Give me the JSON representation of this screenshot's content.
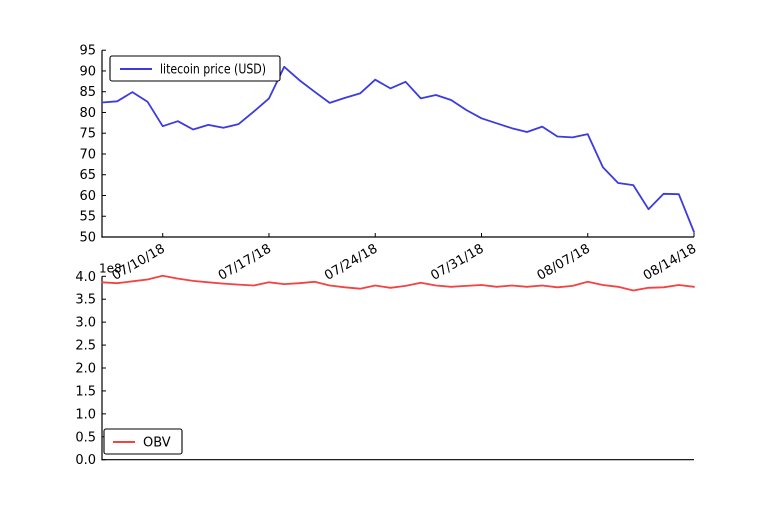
{
  "figure": {
    "background": "#ffffff",
    "axis_color": "#000000",
    "tick_label_color": "#000000"
  },
  "chart_data": [
    {
      "id": "litecoin-price",
      "type": "line",
      "title": "",
      "xlabel": "",
      "ylabel": "",
      "grid": false,
      "x": [
        "07/06/18",
        "07/07/18",
        "07/08/18",
        "07/09/18",
        "07/10/18",
        "07/11/18",
        "07/12/18",
        "07/13/18",
        "07/14/18",
        "07/15/18",
        "07/16/18",
        "07/17/18",
        "07/18/18",
        "07/19/18",
        "07/20/18",
        "07/21/18",
        "07/22/18",
        "07/23/18",
        "07/24/18",
        "07/25/18",
        "07/26/18",
        "07/27/18",
        "07/28/18",
        "07/29/18",
        "07/30/18",
        "07/31/18",
        "08/01/18",
        "08/02/18",
        "08/03/18",
        "08/04/18",
        "08/05/18",
        "08/06/18",
        "08/07/18",
        "08/08/18",
        "08/09/18",
        "08/10/18",
        "08/11/18",
        "08/12/18",
        "08/13/18",
        "08/14/18"
      ],
      "series": [
        {
          "name": "litecoin price (USD)",
          "color": "#3b3be0",
          "values": [
            82.4,
            82.7,
            84.9,
            82.6,
            76.7,
            77.9,
            75.9,
            77.0,
            76.3,
            77.2,
            80.2,
            83.4,
            91.0,
            87.8,
            85.0,
            82.3,
            83.5,
            84.6,
            87.9,
            85.8,
            87.4,
            83.4,
            84.2,
            83.0,
            80.6,
            78.6,
            77.4,
            76.2,
            75.3,
            76.6,
            74.2,
            74.0,
            74.8,
            66.8,
            63.0,
            62.5,
            56.7,
            60.4,
            60.3,
            51.2
          ]
        }
      ],
      "ylim": [
        50,
        95
      ],
      "yticks": [
        50,
        55,
        60,
        65,
        70,
        75,
        80,
        85,
        90,
        95
      ],
      "ytick_labels": [
        "50",
        "55",
        "60",
        "65",
        "70",
        "75",
        "80",
        "85",
        "90",
        "95"
      ],
      "xtick_labels": [
        "07/10/18",
        "07/17/18",
        "07/24/18",
        "07/31/18",
        "08/07/18",
        "08/14/18"
      ],
      "xtick_indices": [
        4,
        11,
        18,
        25,
        32,
        39
      ],
      "legend": {
        "position": "upper left",
        "entries": [
          {
            "label": "litecoin price (USD)",
            "color": "#3b3be0"
          }
        ]
      }
    },
    {
      "id": "obv",
      "type": "line",
      "title": "",
      "xlabel": "",
      "ylabel": "",
      "grid": false,
      "offset_label": "1e8",
      "value_unit_multiplier": 100000000,
      "x": [
        "07/06/18",
        "07/07/18",
        "07/08/18",
        "07/09/18",
        "07/10/18",
        "07/11/18",
        "07/12/18",
        "07/13/18",
        "07/14/18",
        "07/15/18",
        "07/16/18",
        "07/17/18",
        "07/18/18",
        "07/19/18",
        "07/20/18",
        "07/21/18",
        "07/22/18",
        "07/23/18",
        "07/24/18",
        "07/25/18",
        "07/26/18",
        "07/27/18",
        "07/28/18",
        "07/29/18",
        "07/30/18",
        "07/31/18",
        "08/01/18",
        "08/02/18",
        "08/03/18",
        "08/04/18",
        "08/05/18",
        "08/06/18",
        "08/07/18",
        "08/08/18",
        "08/09/18",
        "08/10/18",
        "08/11/18",
        "08/12/18",
        "08/13/18",
        "08/14/18"
      ],
      "series": [
        {
          "name": "OBV",
          "color": "#f44242",
          "values": [
            3.87,
            3.85,
            3.89,
            3.93,
            4.01,
            3.95,
            3.9,
            3.87,
            3.84,
            3.82,
            3.8,
            3.87,
            3.83,
            3.85,
            3.88,
            3.8,
            3.76,
            3.73,
            3.8,
            3.75,
            3.79,
            3.86,
            3.8,
            3.77,
            3.79,
            3.81,
            3.77,
            3.8,
            3.77,
            3.8,
            3.76,
            3.79,
            3.88,
            3.81,
            3.77,
            3.69,
            3.75,
            3.76,
            3.81,
            3.77
          ]
        }
      ],
      "ylim": [
        0.0,
        4.0
      ],
      "yticks": [
        0.0,
        0.5,
        1.0,
        1.5,
        2.0,
        2.5,
        3.0,
        3.5,
        4.0
      ],
      "ytick_labels": [
        "0.0",
        "0.5",
        "1.0",
        "1.5",
        "2.0",
        "2.5",
        "3.0",
        "3.5",
        "4.0"
      ],
      "xtick_labels": [],
      "xtick_indices": [],
      "legend": {
        "position": "lower left",
        "entries": [
          {
            "label": "OBV",
            "color": "#f44242"
          }
        ]
      }
    }
  ]
}
